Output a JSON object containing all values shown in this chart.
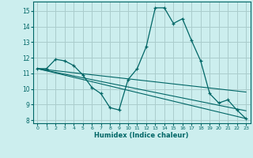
{
  "title": "",
  "xlabel": "Humidex (Indice chaleur)",
  "bg_color": "#cceeee",
  "grid_color": "#aacccc",
  "line_color": "#006666",
  "xlim": [
    -0.5,
    23.5
  ],
  "ylim": [
    7.8,
    15.6
  ],
  "xticks": [
    0,
    1,
    2,
    3,
    4,
    5,
    6,
    7,
    8,
    9,
    10,
    11,
    12,
    13,
    14,
    15,
    16,
    17,
    18,
    19,
    20,
    21,
    22,
    23
  ],
  "yticks": [
    8,
    9,
    10,
    11,
    12,
    13,
    14,
    15
  ],
  "curve1_x": [
    0,
    1,
    2,
    3,
    4,
    5,
    6,
    7,
    8,
    9,
    10,
    11,
    12,
    13,
    14,
    15,
    16,
    17,
    18,
    19,
    20,
    21,
    22,
    23
  ],
  "curve1_y": [
    11.3,
    11.3,
    11.9,
    11.8,
    11.5,
    10.9,
    10.1,
    9.7,
    8.8,
    8.65,
    10.6,
    11.3,
    12.7,
    15.2,
    15.2,
    14.2,
    14.5,
    13.1,
    11.8,
    9.7,
    9.1,
    9.3,
    8.65,
    8.1
  ],
  "line1_x": [
    0,
    23
  ],
  "line1_y": [
    11.3,
    8.1
  ],
  "line2_x": [
    0,
    23
  ],
  "line2_y": [
    11.3,
    8.6
  ],
  "line3_x": [
    0,
    23
  ],
  "line3_y": [
    11.3,
    9.8
  ]
}
